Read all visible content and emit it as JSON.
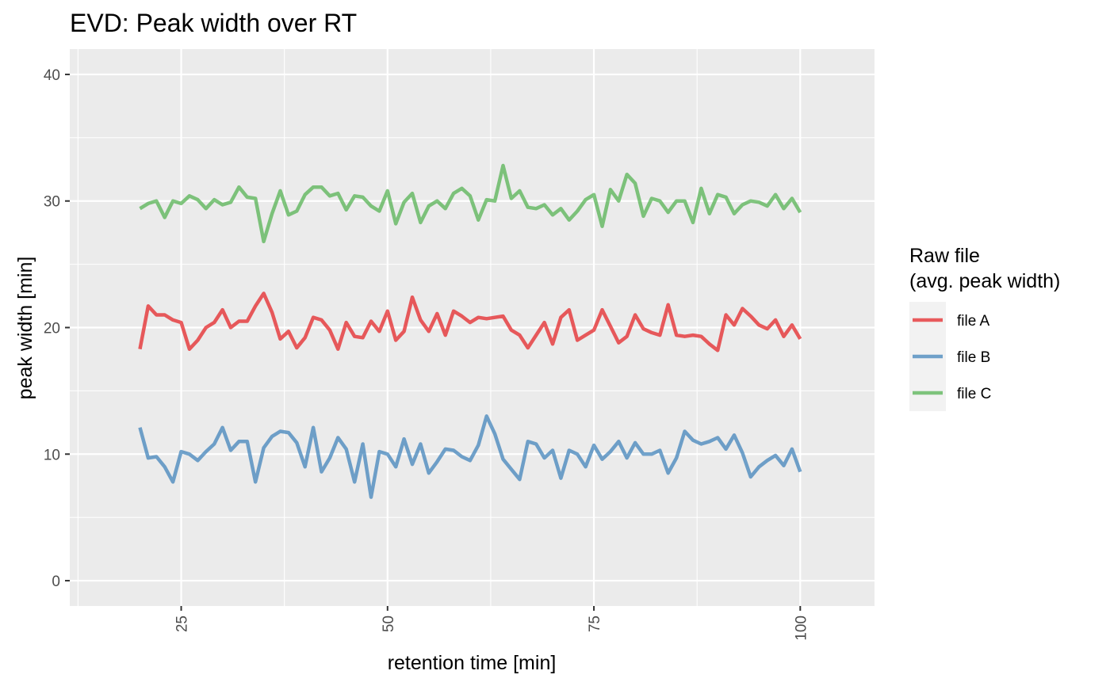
{
  "chart_data": {
    "type": "line",
    "title": "EVD: Peak width over RT",
    "xlabel": "retention time [min]",
    "ylabel": "peak width [min]",
    "xlim": [
      11.5,
      109
    ],
    "ylim": [
      -2,
      42
    ],
    "xticks": [
      25,
      50,
      75,
      100
    ],
    "yticks": [
      0,
      10,
      20,
      30,
      40
    ],
    "grid": true,
    "legend": {
      "title_lines": [
        "Raw file",
        "(avg. peak width)"
      ],
      "position": "right"
    },
    "x": [
      20,
      21,
      22,
      23,
      24,
      25,
      26,
      27,
      28,
      29,
      30,
      31,
      32,
      33,
      34,
      35,
      36,
      37,
      38,
      39,
      40,
      41,
      42,
      43,
      44,
      45,
      46,
      47,
      48,
      49,
      50,
      51,
      52,
      53,
      54,
      55,
      56,
      57,
      58,
      59,
      60,
      61,
      62,
      63,
      64,
      65,
      66,
      67,
      68,
      69,
      70,
      71,
      72,
      73,
      74,
      75,
      76,
      77,
      78,
      79,
      80,
      81,
      82,
      83,
      84,
      85,
      86,
      87,
      88,
      89,
      90,
      91,
      92,
      93,
      94,
      95,
      96,
      97,
      98,
      99,
      100
    ],
    "series": [
      {
        "name": "file A",
        "color": "#e41a1c",
        "values": [
          18.3,
          21.7,
          21.0,
          21.0,
          20.6,
          20.4,
          18.3,
          19.0,
          20.0,
          20.4,
          21.4,
          20.0,
          20.5,
          20.5,
          21.7,
          22.7,
          21.2,
          19.1,
          19.7,
          18.4,
          19.2,
          20.8,
          20.6,
          19.8,
          18.3,
          20.4,
          19.3,
          19.2,
          20.5,
          19.7,
          21.3,
          19.0,
          19.7,
          22.4,
          20.6,
          19.7,
          21.1,
          19.4,
          21.3,
          20.9,
          20.4,
          20.8,
          20.7,
          20.8,
          20.9,
          19.8,
          19.4,
          18.4,
          19.4,
          20.4,
          18.7,
          20.8,
          21.4,
          19.0,
          19.4,
          19.8,
          21.4,
          20.1,
          18.8,
          19.3,
          21.0,
          19.9,
          19.6,
          19.4,
          21.8,
          19.4,
          19.3,
          19.4,
          19.3,
          18.7,
          18.2,
          21.0,
          20.2,
          21.5,
          20.9,
          20.2,
          19.9,
          20.6,
          19.3,
          20.2,
          19.1
        ]
      },
      {
        "name": "file B",
        "color": "#377eb8",
        "values": [
          12.1,
          9.7,
          9.8,
          9.0,
          7.8,
          10.2,
          10.0,
          9.5,
          10.2,
          10.8,
          12.1,
          10.3,
          11.0,
          11.0,
          7.8,
          10.5,
          11.4,
          11.8,
          11.7,
          10.9,
          9.0,
          12.1,
          8.6,
          9.7,
          11.3,
          10.4,
          7.8,
          10.8,
          6.6,
          10.2,
          10.0,
          9.0,
          11.2,
          9.2,
          10.8,
          8.5,
          9.4,
          10.4,
          10.3,
          9.8,
          9.5,
          10.7,
          13.0,
          11.6,
          9.6,
          8.8,
          8.0,
          11.0,
          10.8,
          9.7,
          10.3,
          8.1,
          10.3,
          10.0,
          9.0,
          10.7,
          9.6,
          10.2,
          11.0,
          9.7,
          10.9,
          10.0,
          10.0,
          10.3,
          8.5,
          9.7,
          11.8,
          11.1,
          10.8,
          11.0,
          11.3,
          10.4,
          11.5,
          10.1,
          8.2,
          9.0,
          9.5,
          9.9,
          9.1,
          10.4,
          8.6
        ]
      },
      {
        "name": "file C",
        "color": "#4daf4a",
        "values": [
          29.4,
          29.8,
          30.0,
          28.7,
          30.0,
          29.8,
          30.4,
          30.1,
          29.4,
          30.1,
          29.7,
          29.9,
          31.1,
          30.3,
          30.2,
          26.8,
          29.0,
          30.8,
          28.9,
          29.2,
          30.5,
          31.1,
          31.1,
          30.4,
          30.6,
          29.3,
          30.4,
          30.3,
          29.6,
          29.2,
          30.8,
          28.2,
          29.9,
          30.6,
          28.3,
          29.6,
          30.0,
          29.4,
          30.6,
          31.0,
          30.4,
          28.5,
          30.1,
          30.0,
          32.8,
          30.2,
          30.8,
          29.5,
          29.4,
          29.7,
          28.9,
          29.4,
          28.5,
          29.2,
          30.1,
          30.5,
          28.0,
          30.9,
          30.0,
          32.1,
          31.4,
          28.8,
          30.2,
          30.0,
          29.1,
          30.0,
          30.0,
          28.3,
          31.0,
          29.0,
          30.5,
          30.3,
          29.0,
          29.7,
          30.0,
          29.9,
          29.6,
          30.5,
          29.4,
          30.2,
          29.1
        ]
      }
    ]
  }
}
